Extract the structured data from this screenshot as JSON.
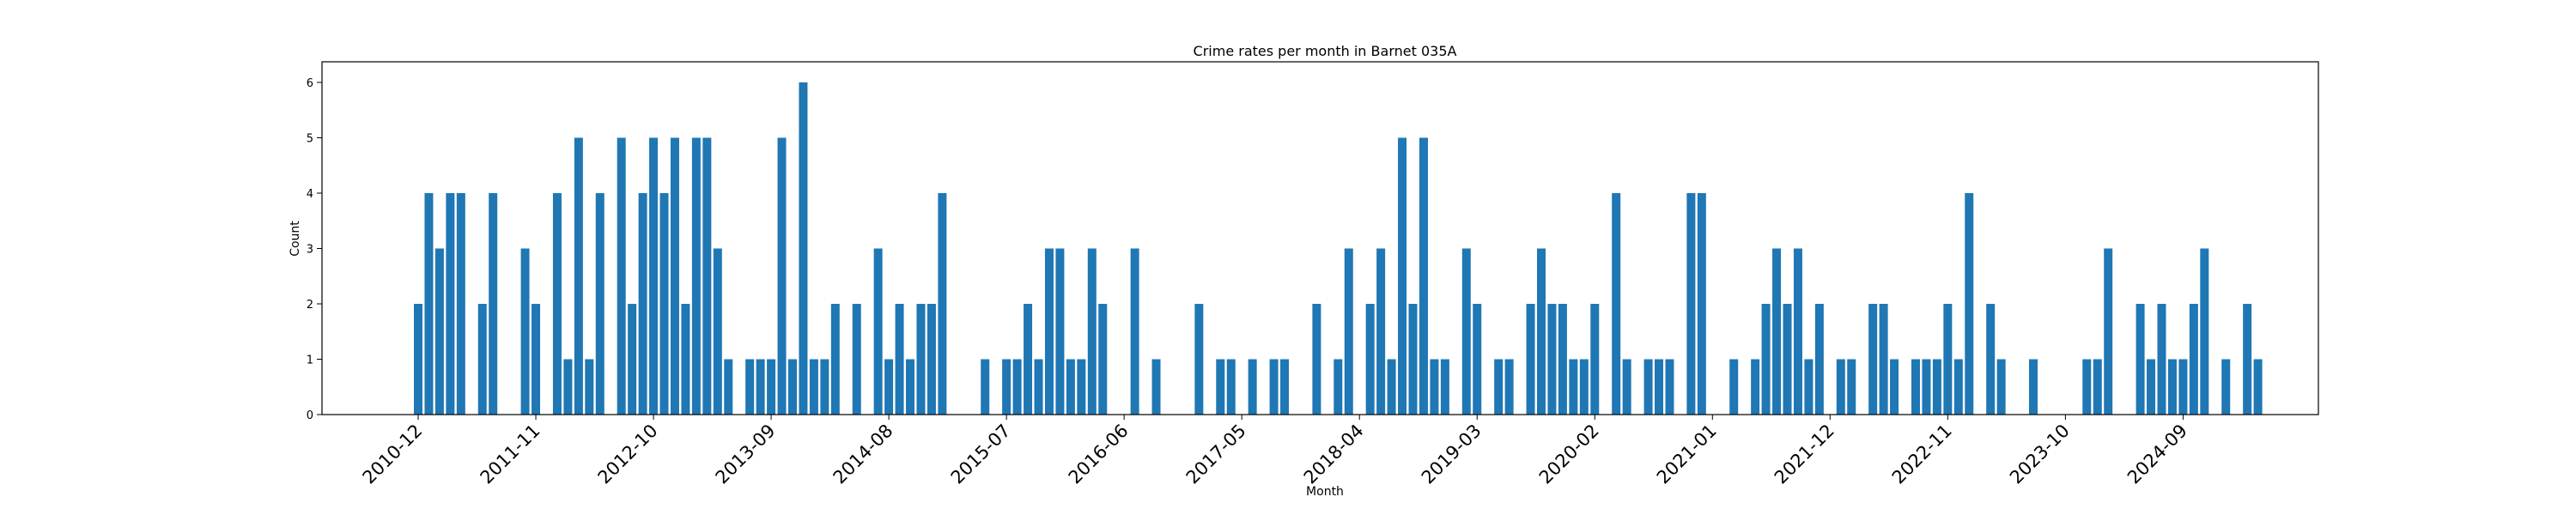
{
  "chart_data": {
    "type": "bar",
    "title": "Crime rates per month in Barnet 035A",
    "xlabel": "Month",
    "ylabel": "Count",
    "ylim": [
      0,
      6.3
    ],
    "yticks": [
      0,
      1,
      2,
      3,
      4,
      5,
      6
    ],
    "x_tick_labels": [
      "2010-12",
      "2011-11",
      "2012-10",
      "2013-09",
      "2014-08",
      "2015-07",
      "2016-06",
      "2017-05",
      "2018-04",
      "2019-03",
      "2020-02",
      "2021-01",
      "2021-12",
      "2022-11",
      "2023-10",
      "2024-09"
    ],
    "bar_color": "#1f77b4",
    "values": [
      2,
      4,
      3,
      4,
      4,
      0,
      2,
      4,
      0,
      0,
      3,
      2,
      0,
      4,
      1,
      5,
      1,
      4,
      0,
      5,
      2,
      4,
      5,
      4,
      5,
      2,
      5,
      5,
      3,
      1,
      0,
      1,
      1,
      1,
      5,
      1,
      6,
      1,
      1,
      2,
      0,
      2,
      0,
      3,
      1,
      2,
      1,
      2,
      2,
      4,
      0,
      0,
      0,
      1,
      0,
      1,
      1,
      2,
      1,
      3,
      3,
      1,
      1,
      3,
      2,
      0,
      0,
      3,
      0,
      1,
      0,
      0,
      0,
      2,
      0,
      1,
      1,
      0,
      1,
      0,
      1,
      1,
      0,
      0,
      2,
      0,
      1,
      3,
      0,
      2,
      3,
      1,
      5,
      2,
      5,
      1,
      1,
      0,
      3,
      2,
      0,
      1,
      1,
      0,
      2,
      3,
      2,
      2,
      1,
      1,
      2,
      0,
      4,
      1,
      0,
      1,
      1,
      1,
      0,
      4,
      4,
      0,
      0,
      1,
      0,
      1,
      2,
      3,
      2,
      3,
      1,
      2,
      0,
      1,
      1,
      0,
      2,
      2,
      1,
      0,
      1,
      1,
      1,
      2,
      1,
      4,
      0,
      2,
      1,
      0,
      0,
      1,
      0,
      0,
      0,
      0,
      1,
      1,
      3,
      0,
      0,
      2,
      1,
      2,
      1,
      1,
      2,
      3,
      0,
      1,
      0,
      2,
      1
    ]
  }
}
